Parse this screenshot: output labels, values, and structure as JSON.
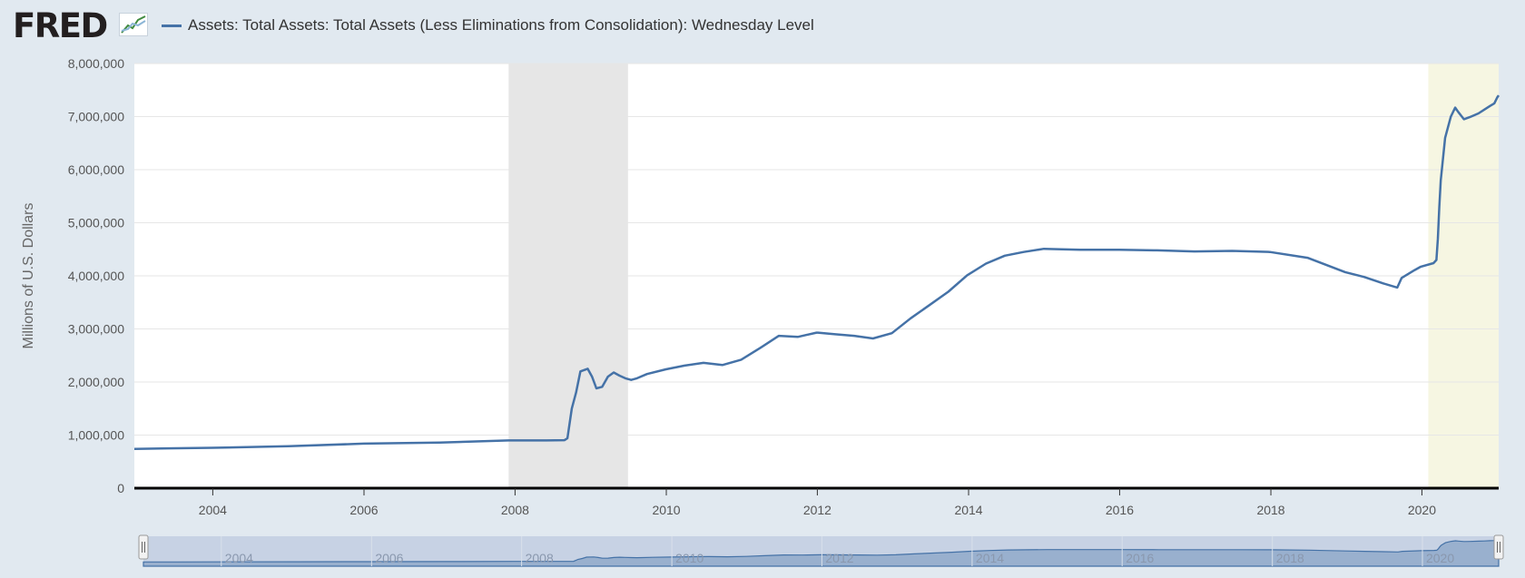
{
  "header": {
    "logo_text": "FRED",
    "series_label": "Assets: Total Assets: Total Assets (Less Eliminations from Consolidation): Wednesday Level"
  },
  "colors": {
    "line": "#4572a7",
    "recession_band": "#e6e6e6",
    "covid_band": "#f6f6e2",
    "navigator_fill": "#c4d0e3",
    "background": "#e1e9f0"
  },
  "chart_data": {
    "type": "line",
    "title": "",
    "xlabel": "",
    "ylabel": "Millions of U.S. Dollars",
    "xlim": [
      "2002-12-18",
      "2021-01-06"
    ],
    "ylim": [
      0,
      8000000
    ],
    "y_ticks": [
      "0",
      "1,000,000",
      "2,000,000",
      "3,000,000",
      "4,000,000",
      "5,000,000",
      "6,000,000",
      "7,000,000",
      "8,000,000"
    ],
    "x_ticks": [
      "2004",
      "2006",
      "2008",
      "2010",
      "2012",
      "2014",
      "2016",
      "2018",
      "2020"
    ],
    "grid": "horizontal",
    "shaded_periods": [
      {
        "start": "2007-12-01",
        "end": "2009-06-30",
        "kind": "recession"
      },
      {
        "start": "2020-02-01",
        "end": "2021-01-06",
        "kind": "recession"
      }
    ],
    "series": [
      {
        "name": "Assets: Total Assets: Total Assets (Less Eliminations from Consolidation): Wednesday Level",
        "x": [
          "2002-12-18",
          "2003-06-01",
          "2004-01-01",
          "2005-01-01",
          "2006-01-01",
          "2007-01-01",
          "2007-12-01",
          "2008-06-01",
          "2008-08-27",
          "2008-09-10",
          "2008-10-01",
          "2008-10-22",
          "2008-11-12",
          "2008-12-17",
          "2009-01-07",
          "2009-01-28",
          "2009-02-25",
          "2009-03-25",
          "2009-04-22",
          "2009-05-20",
          "2009-06-17",
          "2009-07-15",
          "2009-08-12",
          "2009-09-30",
          "2009-12-30",
          "2010-03-31",
          "2010-06-30",
          "2010-09-29",
          "2010-12-29",
          "2011-03-30",
          "2011-06-29",
          "2011-09-28",
          "2011-12-28",
          "2012-01-04",
          "2012-03-28",
          "2012-06-27",
          "2012-09-26",
          "2012-12-26",
          "2013-03-27",
          "2013-06-26",
          "2013-09-25",
          "2013-12-25",
          "2014-03-26",
          "2014-06-25",
          "2014-09-24",
          "2014-12-31",
          "2015-06-24",
          "2015-12-30",
          "2016-06-29",
          "2016-12-28",
          "2017-06-28",
          "2017-12-27",
          "2018-06-27",
          "2018-12-26",
          "2019-03-27",
          "2019-06-26",
          "2019-09-04",
          "2019-09-25",
          "2019-11-27",
          "2019-12-25",
          "2020-02-26",
          "2020-03-11",
          "2020-03-18",
          "2020-03-25",
          "2020-04-01",
          "2020-04-22",
          "2020-05-20",
          "2020-06-10",
          "2020-06-24",
          "2020-07-22",
          "2020-08-19",
          "2020-09-30",
          "2020-10-28",
          "2020-11-25",
          "2020-12-16",
          "2020-12-30",
          "2021-01-06"
        ],
        "values": [
          740000,
          750000,
          760000,
          790000,
          840000,
          860000,
          900000,
          900000,
          905000,
          940000,
          1500000,
          1800000,
          2200000,
          2250000,
          2100000,
          1880000,
          1910000,
          2100000,
          2180000,
          2120000,
          2070000,
          2040000,
          2070000,
          2150000,
          2240000,
          2310000,
          2360000,
          2320000,
          2420000,
          2640000,
          2870000,
          2850000,
          2930000,
          2930000,
          2900000,
          2870000,
          2820000,
          2920000,
          3200000,
          3450000,
          3700000,
          4010000,
          4230000,
          4380000,
          4450000,
          4510000,
          4490000,
          4490000,
          4480000,
          4460000,
          4470000,
          4450000,
          4340000,
          4070000,
          3980000,
          3860000,
          3780000,
          3960000,
          4110000,
          4170000,
          4240000,
          4300000,
          4700000,
          5300000,
          5800000,
          6600000,
          7000000,
          7170000,
          7090000,
          6950000,
          6990000,
          7060000,
          7130000,
          7200000,
          7250000,
          7360000,
          7400000
        ]
      }
    ]
  }
}
